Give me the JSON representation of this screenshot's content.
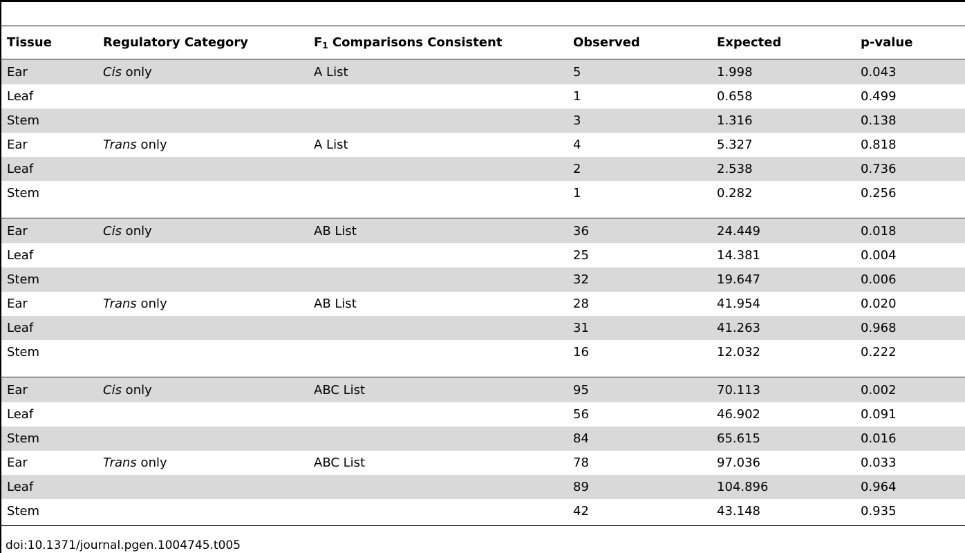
{
  "headers": {
    "tissue": "Tissue",
    "regulatory_category": "Regulatory Category",
    "f1_prefix": "F",
    "f1_sub": "1",
    "f1_suffix": " Comparisons Consistent",
    "observed": "Observed",
    "expected": "Expected",
    "pvalue": "p-value"
  },
  "rows": [
    {
      "tissue": "Ear",
      "cat_it": "Cis",
      "cat_rest": " only",
      "list": "A List",
      "observed": "5",
      "expected": "1.998",
      "pvalue": "0.043",
      "shade": true
    },
    {
      "tissue": "Leaf",
      "cat_it": "",
      "cat_rest": "",
      "list": "",
      "observed": "1",
      "expected": "0.658",
      "pvalue": "0.499",
      "shade": false
    },
    {
      "tissue": "Stem",
      "cat_it": "",
      "cat_rest": "",
      "list": "",
      "observed": "3",
      "expected": "1.316",
      "pvalue": "0.138",
      "shade": true
    },
    {
      "tissue": "Ear",
      "cat_it": "Trans",
      "cat_rest": " only",
      "list": "A List",
      "observed": "4",
      "expected": "5.327",
      "pvalue": "0.818",
      "shade": false
    },
    {
      "tissue": "Leaf",
      "cat_it": "",
      "cat_rest": "",
      "list": "",
      "observed": "2",
      "expected": "2.538",
      "pvalue": "0.736",
      "shade": true
    },
    {
      "tissue": "Stem",
      "cat_it": "",
      "cat_rest": "",
      "list": "",
      "observed": "1",
      "expected": "0.282",
      "pvalue": "0.256",
      "shade": false
    },
    {
      "tissue": "Ear",
      "cat_it": "Cis",
      "cat_rest": " only",
      "list": "AB List",
      "observed": "36",
      "expected": "24.449",
      "pvalue": "0.018",
      "shade": true
    },
    {
      "tissue": "Leaf",
      "cat_it": "",
      "cat_rest": "",
      "list": "",
      "observed": "25",
      "expected": "14.381",
      "pvalue": "0.004",
      "shade": false
    },
    {
      "tissue": "Stem",
      "cat_it": "",
      "cat_rest": "",
      "list": "",
      "observed": "32",
      "expected": "19.647",
      "pvalue": "0.006",
      "shade": true
    },
    {
      "tissue": "Ear",
      "cat_it": "Trans",
      "cat_rest": " only",
      "list": "AB List",
      "observed": "28",
      "expected": "41.954",
      "pvalue": "0.020",
      "shade": false
    },
    {
      "tissue": "Leaf",
      "cat_it": "",
      "cat_rest": "",
      "list": "",
      "observed": "31",
      "expected": "41.263",
      "pvalue": "0.968",
      "shade": true
    },
    {
      "tissue": "Stem",
      "cat_it": "",
      "cat_rest": "",
      "list": "",
      "observed": "16",
      "expected": "12.032",
      "pvalue": "0.222",
      "shade": false
    },
    {
      "tissue": "Ear",
      "cat_it": "Cis",
      "cat_rest": " only",
      "list": "ABC List",
      "observed": "95",
      "expected": "70.113",
      "pvalue": "0.002",
      "shade": true
    },
    {
      "tissue": "Leaf",
      "cat_it": "",
      "cat_rest": "",
      "list": "",
      "observed": "56",
      "expected": "46.902",
      "pvalue": "0.091",
      "shade": false
    },
    {
      "tissue": "Stem",
      "cat_it": "",
      "cat_rest": "",
      "list": "",
      "observed": "84",
      "expected": "65.615",
      "pvalue": "0.016",
      "shade": true
    },
    {
      "tissue": "Ear",
      "cat_it": "Trans",
      "cat_rest": " only",
      "list": "ABC List",
      "observed": "78",
      "expected": "97.036",
      "pvalue": "0.033",
      "shade": false
    },
    {
      "tissue": "Leaf",
      "cat_it": "",
      "cat_rest": "",
      "list": "",
      "observed": "89",
      "expected": "104.896",
      "pvalue": "0.964",
      "shade": true
    },
    {
      "tissue": "Stem",
      "cat_it": "",
      "cat_rest": "",
      "list": "",
      "observed": "42",
      "expected": "43.148",
      "pvalue": "0.935",
      "shade": false
    }
  ],
  "doi": "doi:10.1371/journal.pgen.1004745.t005",
  "colors": {
    "row_shade": "#d9d9d9",
    "rule": "#000000"
  }
}
